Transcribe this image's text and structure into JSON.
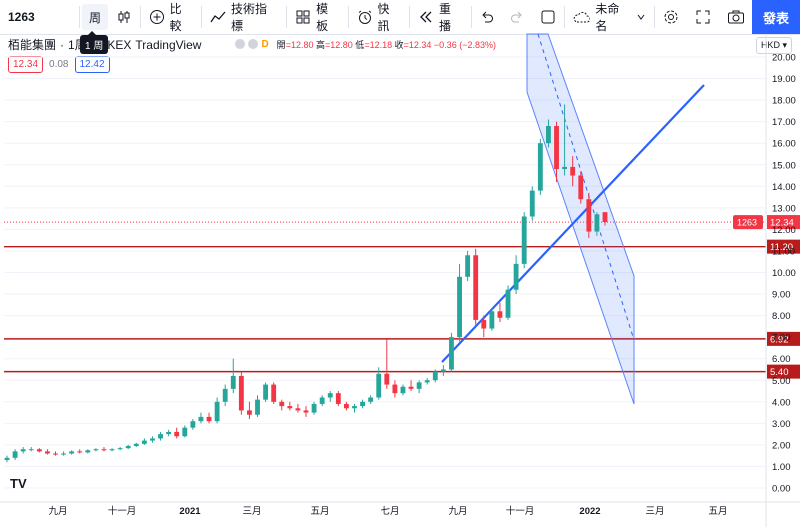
{
  "toolbar": {
    "symbol": "1263",
    "interval": "周",
    "interval_tooltip": "1 周",
    "compare_label": "比較",
    "indicators_label": "技術指標",
    "templates_label": "模板",
    "alert_label": "快訊",
    "replay_label": "重播",
    "layout_name": "未命名",
    "publish_label": "發表"
  },
  "legend": {
    "name": "栢能集團",
    "interval": "1周",
    "exchange": "HKEX",
    "source": "TradingView",
    "open_label": "開",
    "open": "=12.80",
    "high_label": "高",
    "high": "=12.80",
    "low_label": "低",
    "low": "=12.18",
    "close_label": "收",
    "close": "=12.34",
    "change": "−0.36 (−2.83%)",
    "sell_price": "12.34",
    "spread": "0.08",
    "buy_price": "12.42",
    "dot_d": "D",
    "colors": {
      "up": "#26a69a",
      "down": "#f23645",
      "accent": "#2962ff"
    }
  },
  "currency": "HKD",
  "chart_data": {
    "type": "candlestick",
    "y_ticks": [
      0,
      1,
      2,
      3,
      4,
      5,
      6,
      7,
      8,
      9,
      10,
      11,
      12,
      13,
      14,
      15,
      16,
      17,
      18,
      19,
      20
    ],
    "y_tick_labels": [
      "0.00",
      "1.00",
      "2.00",
      "3.00",
      "4.00",
      "5.00",
      "6.00",
      "7.00",
      "8.00",
      "9.00",
      "10.00",
      "11.00",
      "12.00",
      "13.00",
      "14.00",
      "15.00",
      "16.00",
      "17.00",
      "18.00",
      "19.00",
      "20.00"
    ],
    "x_labels": [
      "九月",
      "十一月",
      "2021",
      "三月",
      "五月",
      "七月",
      "九月",
      "十一月",
      "2022",
      "三月",
      "五月"
    ],
    "horizontal_lines": [
      {
        "value": 11.2,
        "label": "11.20"
      },
      {
        "value": 6.92,
        "label": "6.92"
      },
      {
        "value": 5.4,
        "label": "5.40"
      }
    ],
    "last_price": {
      "value": 12.34,
      "symbol": "1263",
      "label": "12.34"
    },
    "candles": [
      {
        "o": 1.3,
        "h": 1.5,
        "l": 1.2,
        "c": 1.4
      },
      {
        "o": 1.4,
        "h": 1.8,
        "l": 1.3,
        "c": 1.7
      },
      {
        "o": 1.7,
        "h": 1.9,
        "l": 1.6,
        "c": 1.8
      },
      {
        "o": 1.8,
        "h": 1.9,
        "l": 1.7,
        "c": 1.8
      },
      {
        "o": 1.8,
        "h": 1.85,
        "l": 1.65,
        "c": 1.7
      },
      {
        "o": 1.7,
        "h": 1.8,
        "l": 1.55,
        "c": 1.6
      },
      {
        "o": 1.6,
        "h": 1.7,
        "l": 1.5,
        "c": 1.55
      },
      {
        "o": 1.55,
        "h": 1.7,
        "l": 1.5,
        "c": 1.6
      },
      {
        "o": 1.6,
        "h": 1.75,
        "l": 1.55,
        "c": 1.7
      },
      {
        "o": 1.7,
        "h": 1.8,
        "l": 1.6,
        "c": 1.65
      },
      {
        "o": 1.65,
        "h": 1.8,
        "l": 1.6,
        "c": 1.75
      },
      {
        "o": 1.75,
        "h": 1.85,
        "l": 1.7,
        "c": 1.8
      },
      {
        "o": 1.8,
        "h": 1.9,
        "l": 1.7,
        "c": 1.75
      },
      {
        "o": 1.75,
        "h": 1.85,
        "l": 1.7,
        "c": 1.8
      },
      {
        "o": 1.8,
        "h": 1.9,
        "l": 1.75,
        "c": 1.85
      },
      {
        "o": 1.85,
        "h": 2.0,
        "l": 1.8,
        "c": 1.95
      },
      {
        "o": 1.95,
        "h": 2.1,
        "l": 1.9,
        "c": 2.05
      },
      {
        "o": 2.05,
        "h": 2.3,
        "l": 2.0,
        "c": 2.2
      },
      {
        "o": 2.2,
        "h": 2.4,
        "l": 2.1,
        "c": 2.3
      },
      {
        "o": 2.3,
        "h": 2.6,
        "l": 2.2,
        "c": 2.5
      },
      {
        "o": 2.5,
        "h": 2.7,
        "l": 2.4,
        "c": 2.6
      },
      {
        "o": 2.6,
        "h": 2.8,
        "l": 2.3,
        "c": 2.4
      },
      {
        "o": 2.4,
        "h": 2.9,
        "l": 2.35,
        "c": 2.8
      },
      {
        "o": 2.8,
        "h": 3.2,
        "l": 2.7,
        "c": 3.1
      },
      {
        "o": 3.1,
        "h": 3.5,
        "l": 3.0,
        "c": 3.3
      },
      {
        "o": 3.3,
        "h": 3.5,
        "l": 3.0,
        "c": 3.1
      },
      {
        "o": 3.1,
        "h": 4.2,
        "l": 3.0,
        "c": 4.0
      },
      {
        "o": 4.0,
        "h": 4.8,
        "l": 3.8,
        "c": 4.6
      },
      {
        "o": 4.6,
        "h": 6.0,
        "l": 4.4,
        "c": 5.2
      },
      {
        "o": 5.2,
        "h": 5.4,
        "l": 3.4,
        "c": 3.6
      },
      {
        "o": 3.6,
        "h": 4.0,
        "l": 3.2,
        "c": 3.4
      },
      {
        "o": 3.4,
        "h": 4.3,
        "l": 3.3,
        "c": 4.1
      },
      {
        "o": 4.1,
        "h": 4.9,
        "l": 4.0,
        "c": 4.8
      },
      {
        "o": 4.8,
        "h": 4.9,
        "l": 3.9,
        "c": 4.0
      },
      {
        "o": 4.0,
        "h": 4.1,
        "l": 3.6,
        "c": 3.8
      },
      {
        "o": 3.8,
        "h": 4.0,
        "l": 3.6,
        "c": 3.7
      },
      {
        "o": 3.7,
        "h": 3.9,
        "l": 3.5,
        "c": 3.6
      },
      {
        "o": 3.6,
        "h": 3.8,
        "l": 3.3,
        "c": 3.5
      },
      {
        "o": 3.5,
        "h": 4.0,
        "l": 3.4,
        "c": 3.9
      },
      {
        "o": 3.9,
        "h": 4.3,
        "l": 3.8,
        "c": 4.2
      },
      {
        "o": 4.2,
        "h": 4.5,
        "l": 4.0,
        "c": 4.4
      },
      {
        "o": 4.4,
        "h": 4.5,
        "l": 3.8,
        "c": 3.9
      },
      {
        "o": 3.9,
        "h": 4.0,
        "l": 3.6,
        "c": 3.7
      },
      {
        "o": 3.7,
        "h": 3.9,
        "l": 3.5,
        "c": 3.8
      },
      {
        "o": 3.8,
        "h": 4.1,
        "l": 3.7,
        "c": 4.0
      },
      {
        "o": 4.0,
        "h": 4.3,
        "l": 3.9,
        "c": 4.2
      },
      {
        "o": 4.2,
        "h": 5.6,
        "l": 4.1,
        "c": 5.3
      },
      {
        "o": 5.3,
        "h": 6.9,
        "l": 4.6,
        "c": 4.8
      },
      {
        "o": 4.8,
        "h": 5.0,
        "l": 4.2,
        "c": 4.4
      },
      {
        "o": 4.4,
        "h": 4.8,
        "l": 4.3,
        "c": 4.7
      },
      {
        "o": 4.7,
        "h": 5.0,
        "l": 4.5,
        "c": 4.6
      },
      {
        "o": 4.6,
        "h": 5.0,
        "l": 4.4,
        "c": 4.9
      },
      {
        "o": 4.9,
        "h": 5.1,
        "l": 4.8,
        "c": 5.0
      },
      {
        "o": 5.0,
        "h": 5.5,
        "l": 4.9,
        "c": 5.4
      },
      {
        "o": 5.4,
        "h": 5.7,
        "l": 5.2,
        "c": 5.5
      },
      {
        "o": 5.5,
        "h": 7.2,
        "l": 5.4,
        "c": 7.0
      },
      {
        "o": 7.0,
        "h": 10.4,
        "l": 6.8,
        "c": 9.8
      },
      {
        "o": 9.8,
        "h": 11.0,
        "l": 9.6,
        "c": 10.8
      },
      {
        "o": 10.8,
        "h": 11.1,
        "l": 7.5,
        "c": 7.8
      },
      {
        "o": 7.8,
        "h": 8.0,
        "l": 7.0,
        "c": 7.4
      },
      {
        "o": 7.4,
        "h": 8.3,
        "l": 7.3,
        "c": 8.2
      },
      {
        "o": 8.2,
        "h": 8.6,
        "l": 7.7,
        "c": 7.9
      },
      {
        "o": 7.9,
        "h": 9.4,
        "l": 7.8,
        "c": 9.2
      },
      {
        "o": 9.2,
        "h": 10.8,
        "l": 9.0,
        "c": 10.4
      },
      {
        "o": 10.4,
        "h": 12.8,
        "l": 10.2,
        "c": 12.6
      },
      {
        "o": 12.6,
        "h": 14.0,
        "l": 12.4,
        "c": 13.8
      },
      {
        "o": 13.8,
        "h": 16.2,
        "l": 13.6,
        "c": 16.0
      },
      {
        "o": 16.0,
        "h": 17.1,
        "l": 15.8,
        "c": 16.8
      },
      {
        "o": 16.8,
        "h": 17.0,
        "l": 14.2,
        "c": 14.8
      },
      {
        "o": 14.8,
        "h": 17.8,
        "l": 14.5,
        "c": 14.9
      },
      {
        "o": 14.9,
        "h": 15.4,
        "l": 14.0,
        "c": 14.5
      },
      {
        "o": 14.5,
        "h": 14.7,
        "l": 13.2,
        "c": 13.4
      },
      {
        "o": 13.4,
        "h": 13.7,
        "l": 11.6,
        "c": 11.9
      },
      {
        "o": 11.9,
        "h": 12.8,
        "l": 11.7,
        "c": 12.7
      },
      {
        "o": 12.8,
        "h": 12.8,
        "l": 12.18,
        "c": 12.34
      }
    ],
    "ylim": [
      0,
      20
    ]
  }
}
